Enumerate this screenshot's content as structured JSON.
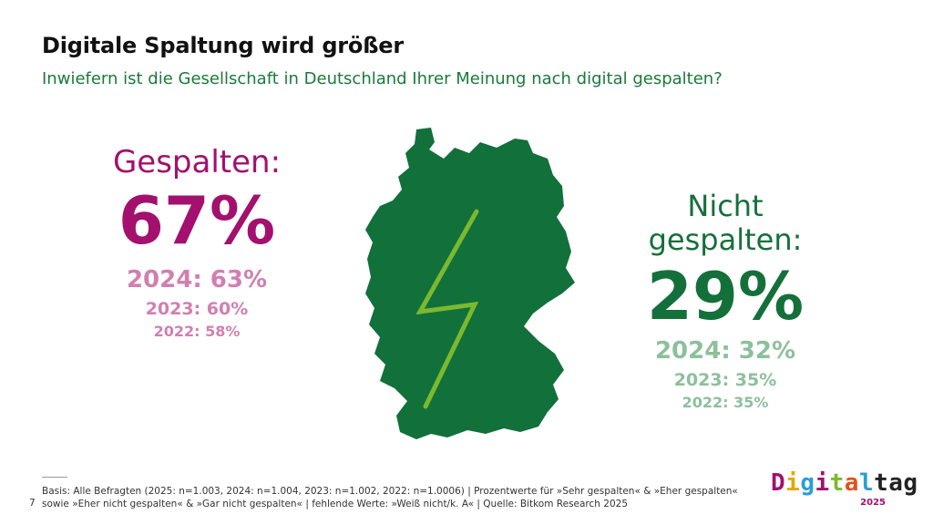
{
  "header": {
    "title": "Digitale Spaltung wird größer",
    "subtitle": "Inwiefern ist die Gesellschaft in Deutschland Ihrer Meinung nach digital gespalten?"
  },
  "chart_data": {
    "type": "table",
    "series": [
      {
        "name": "Gespalten:",
        "current": "67%",
        "previous": [
          "2024: 63%",
          "2023: 60%",
          "2022: 58%"
        ],
        "color": "#a3106e",
        "previous_color": "#d17fb1"
      },
      {
        "name": "Nicht gespalten:",
        "name_lines": [
          "Nicht",
          "gespalten:"
        ],
        "current": "29%",
        "previous": [
          "2024: 32%",
          "2023: 35%",
          "2022: 35%"
        ],
        "color": "#14703a",
        "previous_color": "#8dbf9c"
      }
    ]
  },
  "map": {
    "fill_color": "#12703a",
    "bolt_color": "#7bb92e"
  },
  "footer": {
    "page_number": "7",
    "footnote": "Basis: Alle Befragten (2025: n=1.003, 2024: n=1.004, 2023: n=1.002, 2022: n=1.0006) | Prozentwerte für »Sehr gespalten« & »Eher gespalten« sowie »Eher nicht gespalten« & »Gar nicht gespalten« | fehlende Werte: »Weiß nicht/k. A« | Quelle: Bitkom Research 2025"
  },
  "logo": {
    "letters": [
      "D",
      "i",
      "g",
      "i",
      "t",
      "a",
      "l",
      "t",
      "a",
      "g"
    ],
    "letter_colors": [
      "#a3106e",
      "#e5a800",
      "#2a9fd6",
      "#a3106e",
      "#7bb92e",
      "#e2501d",
      "#2a9fd6",
      "#222222",
      "#222222",
      "#222222"
    ],
    "year": "2025"
  }
}
